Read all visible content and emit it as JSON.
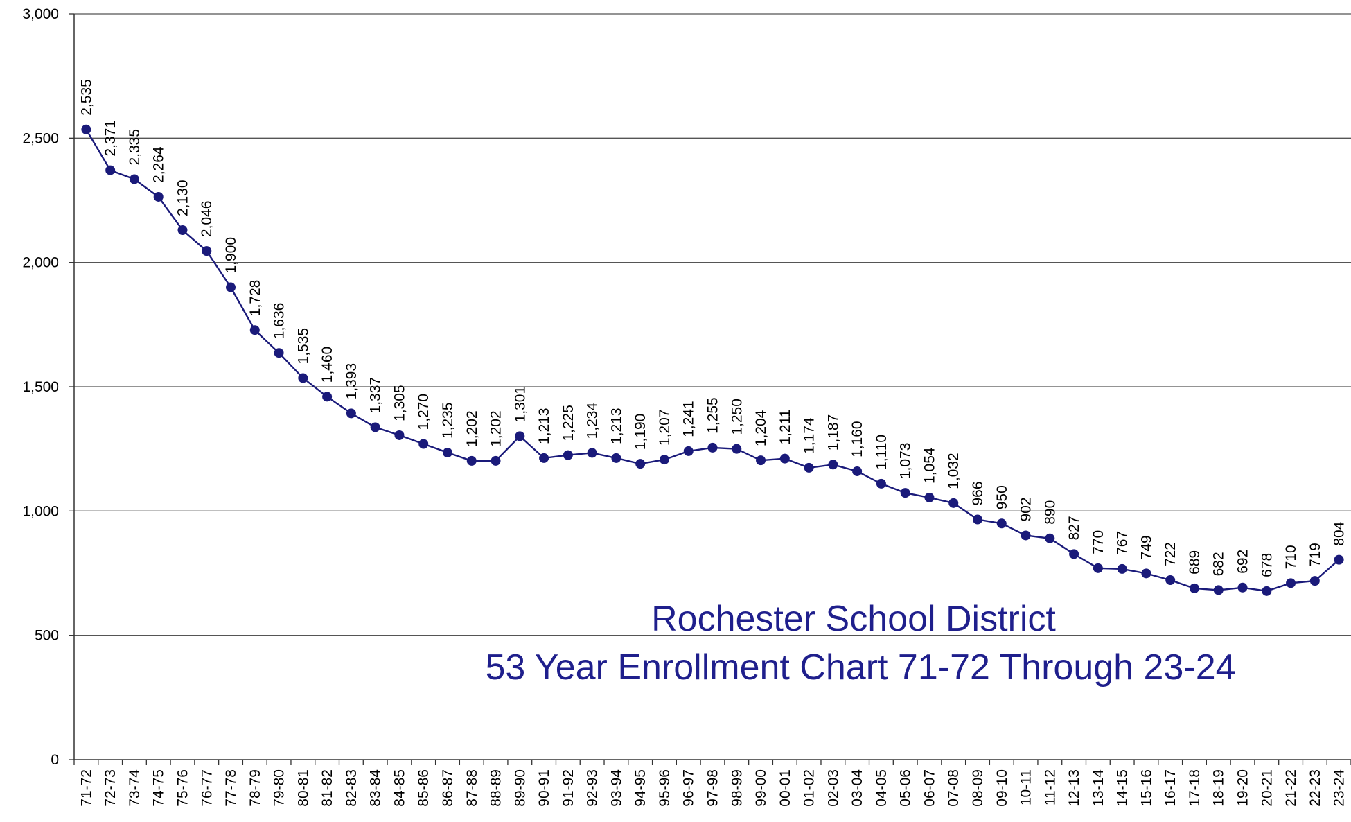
{
  "chart_data": {
    "type": "line",
    "title": "Rochester School District",
    "subtitle": "53 Year Enrollment Chart 71-72 Through 23-24",
    "xlabel": "",
    "ylabel": "",
    "ylim": [
      0,
      3000
    ],
    "yticks": [
      0,
      500,
      1000,
      1500,
      2000,
      2500,
      3000
    ],
    "ytick_labels": [
      "0",
      "500",
      "1,000",
      "1,500",
      "2,000",
      "2,500",
      "3,000"
    ],
    "grid": true,
    "legend": "none",
    "colors": {
      "line": "#1a1a7a",
      "marker": "#1a1a7a",
      "title": "#1f1f8c",
      "grid": "#555555"
    },
    "categories": [
      "71-72",
      "72-73",
      "73-74",
      "74-75",
      "75-76",
      "76-77",
      "77-78",
      "78-79",
      "79-80",
      "80-81",
      "81-82",
      "82-83",
      "83-84",
      "84-85",
      "85-86",
      "86-87",
      "87-88",
      "88-89",
      "89-90",
      "90-91",
      "91-92",
      "92-93",
      "93-94",
      "94-95",
      "95-96",
      "96-97",
      "97-98",
      "98-99",
      "99-00",
      "00-01",
      "01-02",
      "02-03",
      "03-04",
      "04-05",
      "05-06",
      "06-07",
      "07-08",
      "08-09",
      "09-10",
      "10-11",
      "11-12",
      "12-13",
      "13-14",
      "14-15",
      "15-16",
      "16-17",
      "17-18",
      "18-19",
      "19-20",
      "20-21",
      "21-22",
      "22-23",
      "23-24"
    ],
    "series": [
      {
        "values": [
          2535,
          2371,
          2335,
          2264,
          2130,
          2046,
          1900,
          1728,
          1636,
          1535,
          1460,
          1393,
          1337,
          1305,
          1270,
          1235,
          1202,
          1202,
          1301,
          1213,
          1225,
          1234,
          1213,
          1190,
          1207,
          1241,
          1255,
          1250,
          1204,
          1211,
          1174,
          1187,
          1160,
          1110,
          1073,
          1054,
          1032,
          966,
          950,
          902,
          890,
          827,
          770,
          767,
          749,
          722,
          689,
          682,
          692,
          678,
          710,
          719,
          804
        ],
        "labels": [
          "2,535",
          "2,371",
          "2,335",
          "2,264",
          "2,130",
          "2,046",
          "1,900",
          "1,728",
          "1,636",
          "1,535",
          "1,460",
          "1,393",
          "1,337",
          "1,305",
          "1,270",
          "1,235",
          "1,202",
          "1,202",
          "1,301",
          "1,213",
          "1,225",
          "1,234",
          "1,213",
          "1,190",
          "1,207",
          "1,241",
          "1,255",
          "1,250",
          "1,204",
          "1,211",
          "1,174",
          "1,187",
          "1,160",
          "1,110",
          "1,073",
          "1,054",
          "1,032",
          "966",
          "950",
          "902",
          "890",
          "827",
          "770",
          "767",
          "749",
          "722",
          "689",
          "682",
          "692",
          "678",
          "710",
          "719",
          "804"
        ]
      }
    ]
  }
}
